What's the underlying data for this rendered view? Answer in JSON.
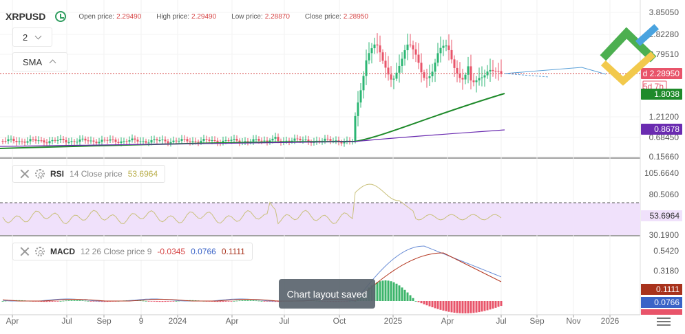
{
  "header": {
    "symbol": "XRPUSD",
    "open_label": "Open price:",
    "open_value": "2.29490",
    "high_label": "High price:",
    "high_value": "2.29490",
    "low_label": "Low price:",
    "low_value": "2.28870",
    "close_label": "Close price:",
    "close_value": "2.28950"
  },
  "timeframe_dropdown": {
    "value": "2"
  },
  "sma_dropdown": {
    "value": "SMA"
  },
  "rsi_panel": {
    "name": "RSI",
    "params": "14 Close price",
    "value": "53.6964"
  },
  "macd_panel": {
    "name": "MACD",
    "params": "12 26 Close price 9",
    "v1": "-0.0345",
    "v2": "0.0766",
    "v3": "0.1111"
  },
  "toast": {
    "text": "Chart layout saved"
  },
  "colors": {
    "up": "#2bb673",
    "down": "#e8546a",
    "sma_fast": "#1e8a2a",
    "sma_slow": "#6a2bb0",
    "rsi": "#c9c07a",
    "rsi_band": "#f0e1fb",
    "macd_line": "#6b8ed6",
    "signal_line": "#b4361f",
    "hist_up": "#3cb46a",
    "hist_down": "#e8546a",
    "price_tag": "#e8546a"
  },
  "chart_data": [
    {
      "type": "candlestick",
      "series": [
        {
          "name": "XRPUSD"
        },
        {
          "name": "SMA"
        },
        {
          "name": "SMA"
        }
      ],
      "y_ticks": [
        "3.85050",
        "2.82280",
        "2.79510",
        "1.21200",
        "0.68450",
        "0.15660"
      ],
      "price_tags": [
        {
          "label": "2.28950",
          "prefix": "d",
          "color": "#e8546a"
        },
        {
          "label": "5d 7h",
          "color": "#ffffff"
        },
        {
          "label": "1.8038",
          "color": "#1e8a2a"
        },
        {
          "label": "0.8678",
          "color": "#6a2bb0"
        }
      ]
    },
    {
      "type": "line",
      "series": [
        {
          "name": "RSI"
        }
      ],
      "y_ticks": [
        "105.6640",
        "80.5060",
        "30.1900"
      ],
      "price_tag": "53.6964",
      "band": [
        30,
        70
      ]
    },
    {
      "type": "bar",
      "series": [
        {
          "name": "MACD"
        },
        {
          "name": "Signal"
        },
        {
          "name": "Histogram"
        }
      ],
      "y_ticks": [
        "0.5420",
        "0.3180"
      ],
      "price_tags": [
        "0.1111",
        "0.0766"
      ],
      "x_ticks": [
        "Apr",
        "Jul",
        "Sep",
        "9",
        "2024",
        "Apr",
        "Jul",
        "Oct",
        "2025",
        "Apr",
        "Jul",
        "Sep",
        "Nov",
        "2026"
      ]
    }
  ]
}
